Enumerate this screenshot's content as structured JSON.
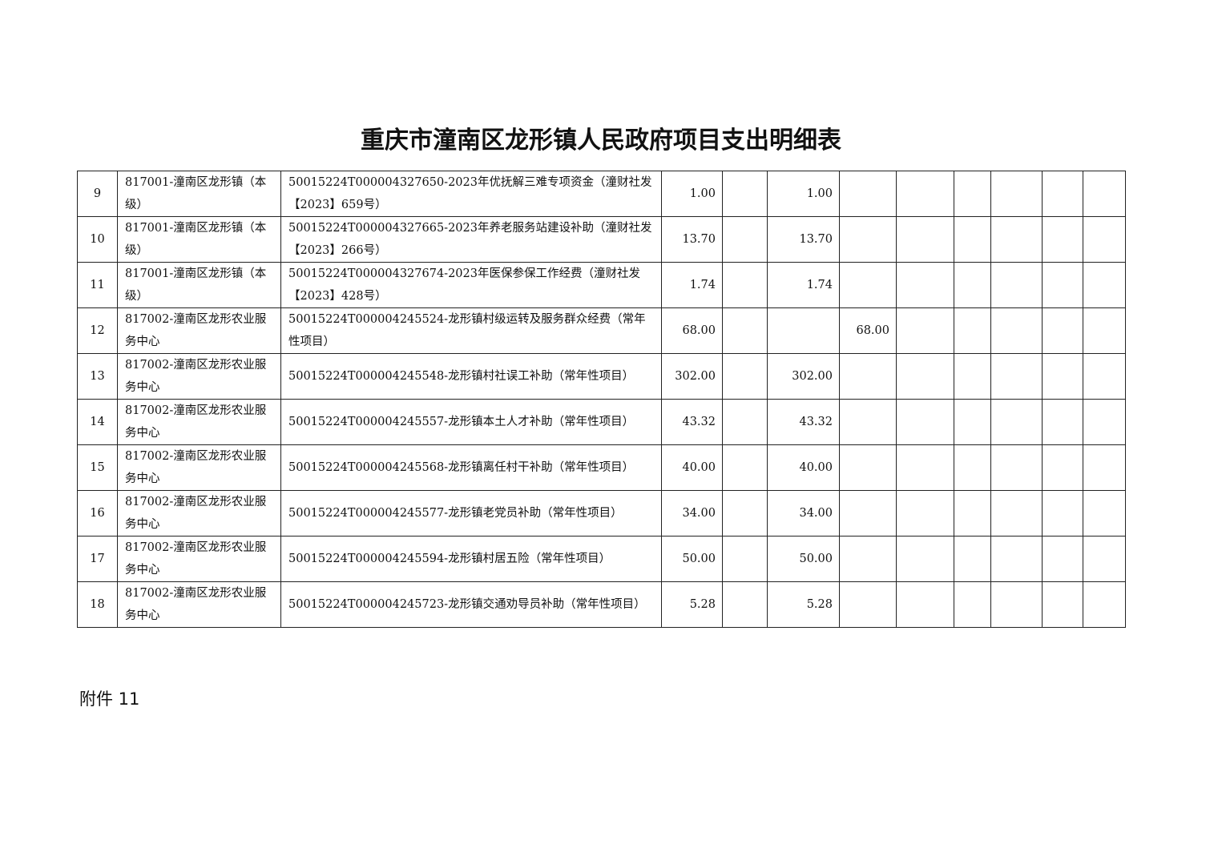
{
  "title": "重庆市潼南区龙形镇人民政府项目支出明细表",
  "rows": [
    {
      "no": "9",
      "unit": "817001-潼南区龙形镇（本级）",
      "project": "50015224T000004327650-2023年优抚解三难专项资金（潼财社发【2023】659号）",
      "c1": "1.00",
      "c2": "",
      "c3": "1.00",
      "c4": "",
      "c5": "",
      "c6": "",
      "c7": "",
      "c8": "",
      "c9": "",
      "c10": ""
    },
    {
      "no": "10",
      "unit": "817001-潼南区龙形镇（本级）",
      "project": "50015224T000004327665-2023年养老服务站建设补助（潼财社发【2023】266号）",
      "c1": "13.70",
      "c2": "",
      "c3": "13.70",
      "c4": "",
      "c5": "",
      "c6": "",
      "c7": "",
      "c8": "",
      "c9": "",
      "c10": ""
    },
    {
      "no": "11",
      "unit": "817001-潼南区龙形镇（本级）",
      "project": "50015224T000004327674-2023年医保参保工作经费（潼财社发【2023】428号）",
      "c1": "1.74",
      "c2": "",
      "c3": "1.74",
      "c4": "",
      "c5": "",
      "c6": "",
      "c7": "",
      "c8": "",
      "c9": "",
      "c10": ""
    },
    {
      "no": "12",
      "unit": "817002-潼南区龙形农业服务中心",
      "project": "50015224T000004245524-龙形镇村级运转及服务群众经费（常年性项目）",
      "c1": "68.00",
      "c2": "",
      "c3": "",
      "c4": "68.00",
      "c5": "",
      "c6": "",
      "c7": "",
      "c8": "",
      "c9": "",
      "c10": ""
    },
    {
      "no": "13",
      "unit": "817002-潼南区龙形农业服务中心",
      "project": "50015224T000004245548-龙形镇村社误工补助（常年性项目）",
      "c1": "302.00",
      "c2": "",
      "c3": "302.00",
      "c4": "",
      "c5": "",
      "c6": "",
      "c7": "",
      "c8": "",
      "c9": "",
      "c10": ""
    },
    {
      "no": "14",
      "unit": "817002-潼南区龙形农业服务中心",
      "project": "50015224T000004245557-龙形镇本土人才补助（常年性项目）",
      "c1": "43.32",
      "c2": "",
      "c3": "43.32",
      "c4": "",
      "c5": "",
      "c6": "",
      "c7": "",
      "c8": "",
      "c9": "",
      "c10": ""
    },
    {
      "no": "15",
      "unit": "817002-潼南区龙形农业服务中心",
      "project": "50015224T000004245568-龙形镇离任村干补助（常年性项目）",
      "c1": "40.00",
      "c2": "",
      "c3": "40.00",
      "c4": "",
      "c5": "",
      "c6": "",
      "c7": "",
      "c8": "",
      "c9": "",
      "c10": ""
    },
    {
      "no": "16",
      "unit": "817002-潼南区龙形农业服务中心",
      "project": "50015224T000004245577-龙形镇老党员补助（常年性项目）",
      "c1": "34.00",
      "c2": "",
      "c3": "34.00",
      "c4": "",
      "c5": "",
      "c6": "",
      "c7": "",
      "c8": "",
      "c9": "",
      "c10": ""
    },
    {
      "no": "17",
      "unit": "817002-潼南区龙形农业服务中心",
      "project": "50015224T000004245594-龙形镇村居五险（常年性项目）",
      "c1": "50.00",
      "c2": "",
      "c3": "50.00",
      "c4": "",
      "c5": "",
      "c6": "",
      "c7": "",
      "c8": "",
      "c9": "",
      "c10": ""
    },
    {
      "no": "18",
      "unit": "817002-潼南区龙形农业服务中心",
      "project": "50015224T000004245723-龙形镇交通劝导员补助（常年性项目）",
      "c1": "5.28",
      "c2": "",
      "c3": "5.28",
      "c4": "",
      "c5": "",
      "c6": "",
      "c7": "",
      "c8": "",
      "c9": "",
      "c10": ""
    }
  ],
  "footer": "附件 11"
}
